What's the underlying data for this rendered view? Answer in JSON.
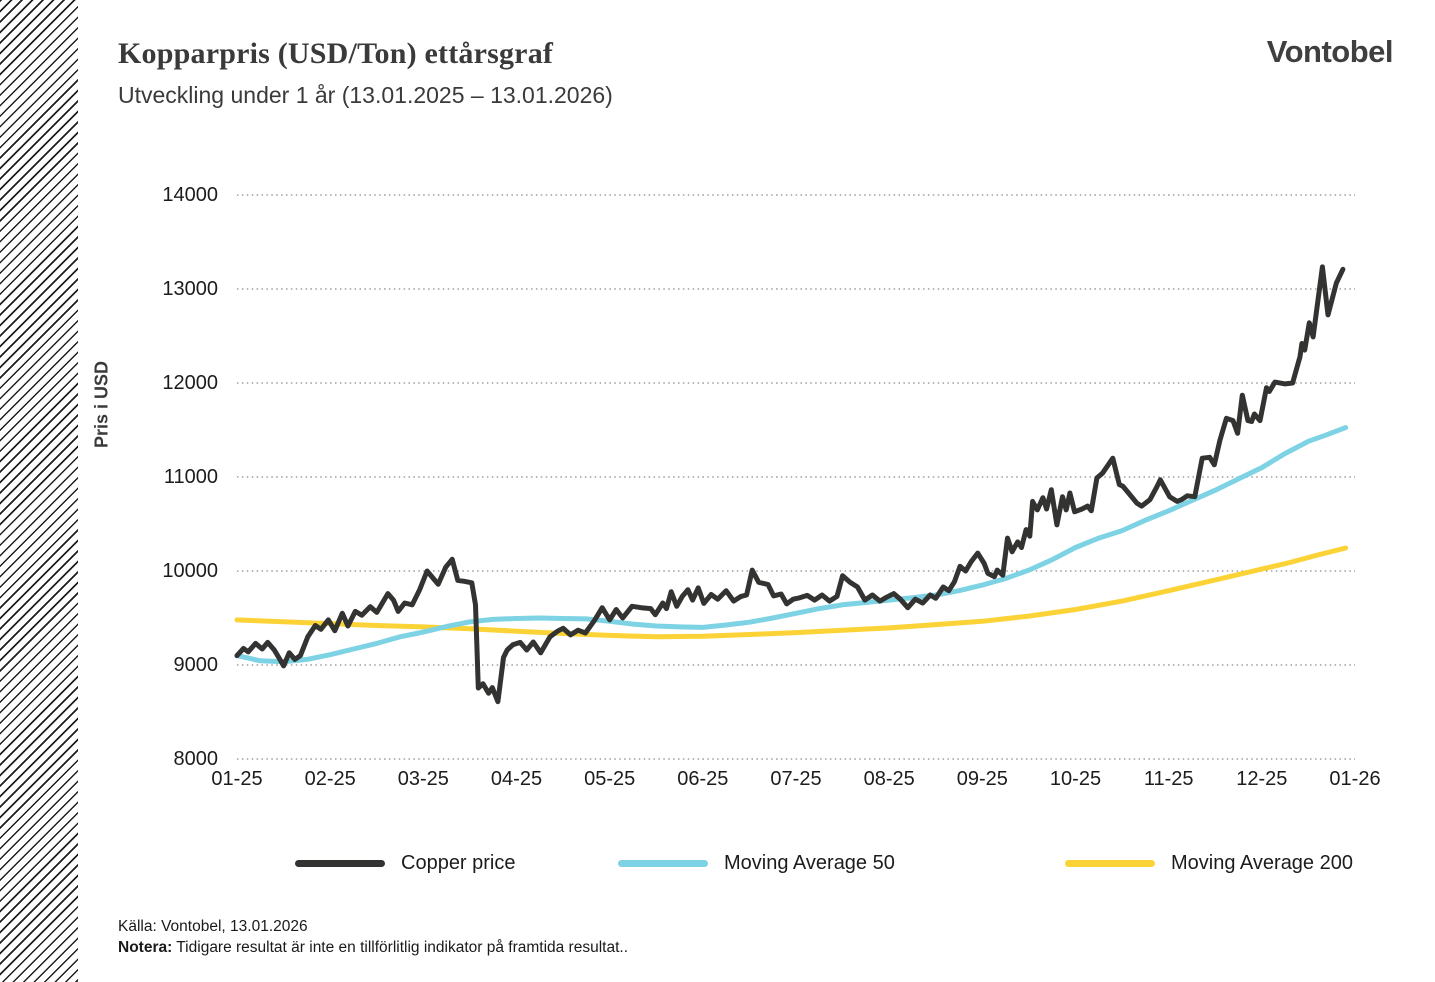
{
  "header": {
    "title": "Kopparpris (USD/Ton) ettårsgraf",
    "subtitle": "Utveckling under 1 år (13.01.2025 – 13.01.2026)",
    "brand": "Vontobel"
  },
  "footer": {
    "source": "Källa: Vontobel, 13.01.2026",
    "note_label": "Notera:",
    "note_text": " Tidigare resultat är inte en tillförlitlig indikator på framtida resultat.."
  },
  "chart_data": {
    "type": "line",
    "title": "Kopparpris (USD/Ton) ettårsgraf",
    "xlabel": "",
    "ylabel": "Pris i USD",
    "ylim": [
      8000,
      14000
    ],
    "y_ticks": [
      14000,
      13000,
      12000,
      11000,
      10000,
      9000,
      8000
    ],
    "x_ticks": [
      "01-25",
      "02-25",
      "03-25",
      "04-25",
      "05-25",
      "06-25",
      "07-25",
      "08-25",
      "09-25",
      "10-25",
      "11-25",
      "12-25",
      "01-26"
    ],
    "x_unit": "months since 13.01.2025 (0 = 01-25 tick, 12 = 01-26 tick)",
    "grid": "horizontal dotted gridlines",
    "legend_position": "bottom",
    "grid_color": "#8a8a8a",
    "series": [
      {
        "name": "Copper price",
        "color": "#333331",
        "width": 5,
        "points": [
          [
            0,
            9100
          ],
          [
            0.07,
            9175
          ],
          [
            0.12,
            9140
          ],
          [
            0.2,
            9230
          ],
          [
            0.27,
            9170
          ],
          [
            0.33,
            9240
          ],
          [
            0.4,
            9160
          ],
          [
            0.46,
            9060
          ],
          [
            0.5,
            8990
          ],
          [
            0.56,
            9130
          ],
          [
            0.62,
            9060
          ],
          [
            0.68,
            9100
          ],
          [
            0.76,
            9300
          ],
          [
            0.84,
            9420
          ],
          [
            0.9,
            9380
          ],
          [
            0.98,
            9480
          ],
          [
            1.05,
            9365
          ],
          [
            1.13,
            9550
          ],
          [
            1.19,
            9415
          ],
          [
            1.27,
            9570
          ],
          [
            1.34,
            9530
          ],
          [
            1.43,
            9620
          ],
          [
            1.5,
            9560
          ],
          [
            1.62,
            9760
          ],
          [
            1.68,
            9690
          ],
          [
            1.73,
            9570
          ],
          [
            1.8,
            9660
          ],
          [
            1.88,
            9640
          ],
          [
            1.96,
            9800
          ],
          [
            2.04,
            10000
          ],
          [
            2.1,
            9930
          ],
          [
            2.16,
            9860
          ],
          [
            2.24,
            10040
          ],
          [
            2.31,
            10125
          ],
          [
            2.37,
            9900
          ],
          [
            2.44,
            9890
          ],
          [
            2.52,
            9875
          ],
          [
            2.56,
            9640
          ],
          [
            2.59,
            8755
          ],
          [
            2.64,
            8800
          ],
          [
            2.7,
            8700
          ],
          [
            2.74,
            8760
          ],
          [
            2.8,
            8610
          ],
          [
            2.86,
            9080
          ],
          [
            2.9,
            9160
          ],
          [
            2.96,
            9215
          ],
          [
            3.04,
            9240
          ],
          [
            3.11,
            9160
          ],
          [
            3.18,
            9245
          ],
          [
            3.26,
            9130
          ],
          [
            3.36,
            9300
          ],
          [
            3.44,
            9360
          ],
          [
            3.5,
            9390
          ],
          [
            3.58,
            9320
          ],
          [
            3.66,
            9370
          ],
          [
            3.74,
            9340
          ],
          [
            3.84,
            9480
          ],
          [
            3.92,
            9610
          ],
          [
            4,
            9480
          ],
          [
            4.07,
            9590
          ],
          [
            4.14,
            9500
          ],
          [
            4.24,
            9625
          ],
          [
            4.34,
            9610
          ],
          [
            4.44,
            9600
          ],
          [
            4.49,
            9535
          ],
          [
            4.57,
            9660
          ],
          [
            4.61,
            9600
          ],
          [
            4.66,
            9780
          ],
          [
            4.72,
            9625
          ],
          [
            4.78,
            9730
          ],
          [
            4.84,
            9800
          ],
          [
            4.89,
            9690
          ],
          [
            4.95,
            9820
          ],
          [
            5.01,
            9655
          ],
          [
            5.09,
            9750
          ],
          [
            5.16,
            9700
          ],
          [
            5.25,
            9790
          ],
          [
            5.33,
            9680
          ],
          [
            5.41,
            9730
          ],
          [
            5.47,
            9745
          ],
          [
            5.53,
            10010
          ],
          [
            5.6,
            9880
          ],
          [
            5.7,
            9855
          ],
          [
            5.76,
            9735
          ],
          [
            5.84,
            9755
          ],
          [
            5.9,
            9650
          ],
          [
            5.97,
            9700
          ],
          [
            6.04,
            9715
          ],
          [
            6.12,
            9740
          ],
          [
            6.2,
            9690
          ],
          [
            6.28,
            9745
          ],
          [
            6.36,
            9680
          ],
          [
            6.44,
            9730
          ],
          [
            6.5,
            9950
          ],
          [
            6.58,
            9880
          ],
          [
            6.66,
            9830
          ],
          [
            6.74,
            9690
          ],
          [
            6.82,
            9745
          ],
          [
            6.9,
            9680
          ],
          [
            6.97,
            9720
          ],
          [
            7.05,
            9760
          ],
          [
            7.12,
            9700
          ],
          [
            7.2,
            9610
          ],
          [
            7.28,
            9700
          ],
          [
            7.36,
            9660
          ],
          [
            7.44,
            9745
          ],
          [
            7.5,
            9710
          ],
          [
            7.58,
            9830
          ],
          [
            7.64,
            9790
          ],
          [
            7.7,
            9885
          ],
          [
            7.76,
            10050
          ],
          [
            7.82,
            10000
          ],
          [
            7.88,
            10100
          ],
          [
            7.95,
            10190
          ],
          [
            8.02,
            10080
          ],
          [
            8.06,
            9975
          ],
          [
            8.13,
            9940
          ],
          [
            8.16,
            10010
          ],
          [
            8.22,
            9955
          ],
          [
            8.27,
            10350
          ],
          [
            8.32,
            10205
          ],
          [
            8.38,
            10310
          ],
          [
            8.42,
            10250
          ],
          [
            8.47,
            10440
          ],
          [
            8.51,
            10370
          ],
          [
            8.54,
            10740
          ],
          [
            8.59,
            10650
          ],
          [
            8.65,
            10780
          ],
          [
            8.69,
            10660
          ],
          [
            8.74,
            10865
          ],
          [
            8.8,
            10490
          ],
          [
            8.86,
            10790
          ],
          [
            8.9,
            10650
          ],
          [
            8.94,
            10830
          ],
          [
            8.99,
            10630
          ],
          [
            9.07,
            10660
          ],
          [
            9.13,
            10690
          ],
          [
            9.17,
            10640
          ],
          [
            9.23,
            10990
          ],
          [
            9.29,
            11040
          ],
          [
            9.4,
            11200
          ],
          [
            9.47,
            10920
          ],
          [
            9.51,
            10900
          ],
          [
            9.56,
            10840
          ],
          [
            9.66,
            10720
          ],
          [
            9.71,
            10690
          ],
          [
            9.8,
            10760
          ],
          [
            9.87,
            10890
          ],
          [
            9.91,
            10970
          ],
          [
            10.01,
            10790
          ],
          [
            10.09,
            10740
          ],
          [
            10.14,
            10760
          ],
          [
            10.2,
            10800
          ],
          [
            10.28,
            10790
          ],
          [
            10.36,
            11200
          ],
          [
            10.44,
            11210
          ],
          [
            10.49,
            11130
          ],
          [
            10.55,
            11390
          ],
          [
            10.62,
            11625
          ],
          [
            10.69,
            11600
          ],
          [
            10.74,
            11465
          ],
          [
            10.79,
            11870
          ],
          [
            10.85,
            11600
          ],
          [
            10.89,
            11590
          ],
          [
            10.92,
            11670
          ],
          [
            10.98,
            11600
          ],
          [
            11.05,
            11950
          ],
          [
            11.08,
            11910
          ],
          [
            11.14,
            12010
          ],
          [
            11.25,
            11990
          ],
          [
            11.33,
            12000
          ],
          [
            11.41,
            12280
          ],
          [
            11.43,
            12420
          ],
          [
            11.46,
            12350
          ],
          [
            11.51,
            12640
          ],
          [
            11.55,
            12490
          ],
          [
            11.65,
            13235
          ],
          [
            11.71,
            12725
          ],
          [
            11.8,
            13065
          ],
          [
            11.87,
            13210
          ]
        ]
      },
      {
        "name": "Moving Average 50",
        "color": "#7dd2e3",
        "width": 5,
        "points": [
          [
            0,
            9100
          ],
          [
            0.25,
            9045
          ],
          [
            0.5,
            9035
          ],
          [
            0.75,
            9060
          ],
          [
            1,
            9110
          ],
          [
            1.25,
            9170
          ],
          [
            1.5,
            9230
          ],
          [
            1.75,
            9300
          ],
          [
            2,
            9350
          ],
          [
            2.25,
            9410
          ],
          [
            2.5,
            9460
          ],
          [
            2.75,
            9485
          ],
          [
            3,
            9495
          ],
          [
            3.25,
            9500
          ],
          [
            3.5,
            9495
          ],
          [
            3.75,
            9490
          ],
          [
            4,
            9465
          ],
          [
            4.25,
            9435
          ],
          [
            4.5,
            9415
          ],
          [
            4.75,
            9405
          ],
          [
            5,
            9400
          ],
          [
            5.25,
            9425
          ],
          [
            5.5,
            9455
          ],
          [
            5.75,
            9500
          ],
          [
            6,
            9550
          ],
          [
            6.25,
            9600
          ],
          [
            6.5,
            9640
          ],
          [
            6.75,
            9665
          ],
          [
            7,
            9690
          ],
          [
            7.25,
            9715
          ],
          [
            7.5,
            9745
          ],
          [
            7.75,
            9790
          ],
          [
            8,
            9850
          ],
          [
            8.25,
            9920
          ],
          [
            8.5,
            10010
          ],
          [
            8.75,
            10120
          ],
          [
            9,
            10250
          ],
          [
            9.25,
            10350
          ],
          [
            9.5,
            10430
          ],
          [
            9.75,
            10540
          ],
          [
            10,
            10640
          ],
          [
            10.25,
            10750
          ],
          [
            10.5,
            10860
          ],
          [
            10.75,
            10980
          ],
          [
            11,
            11100
          ],
          [
            11.25,
            11250
          ],
          [
            11.5,
            11380
          ],
          [
            11.7,
            11450
          ],
          [
            11.9,
            11525
          ]
        ]
      },
      {
        "name": "Moving Average 200",
        "color": "#fbd337",
        "width": 5,
        "points": [
          [
            0,
            9480
          ],
          [
            0.5,
            9460
          ],
          [
            1,
            9440
          ],
          [
            1.5,
            9420
          ],
          [
            2,
            9405
          ],
          [
            2.5,
            9385
          ],
          [
            3,
            9360
          ],
          [
            3.5,
            9335
          ],
          [
            4,
            9315
          ],
          [
            4.5,
            9300
          ],
          [
            5,
            9305
          ],
          [
            5.5,
            9325
          ],
          [
            6,
            9345
          ],
          [
            6.5,
            9370
          ],
          [
            7,
            9395
          ],
          [
            7.5,
            9430
          ],
          [
            8,
            9465
          ],
          [
            8.5,
            9520
          ],
          [
            9,
            9590
          ],
          [
            9.5,
            9680
          ],
          [
            10,
            9790
          ],
          [
            10.5,
            9905
          ],
          [
            11,
            10020
          ],
          [
            11.3,
            10090
          ],
          [
            11.6,
            10170
          ],
          [
            11.9,
            10245
          ]
        ]
      }
    ]
  }
}
